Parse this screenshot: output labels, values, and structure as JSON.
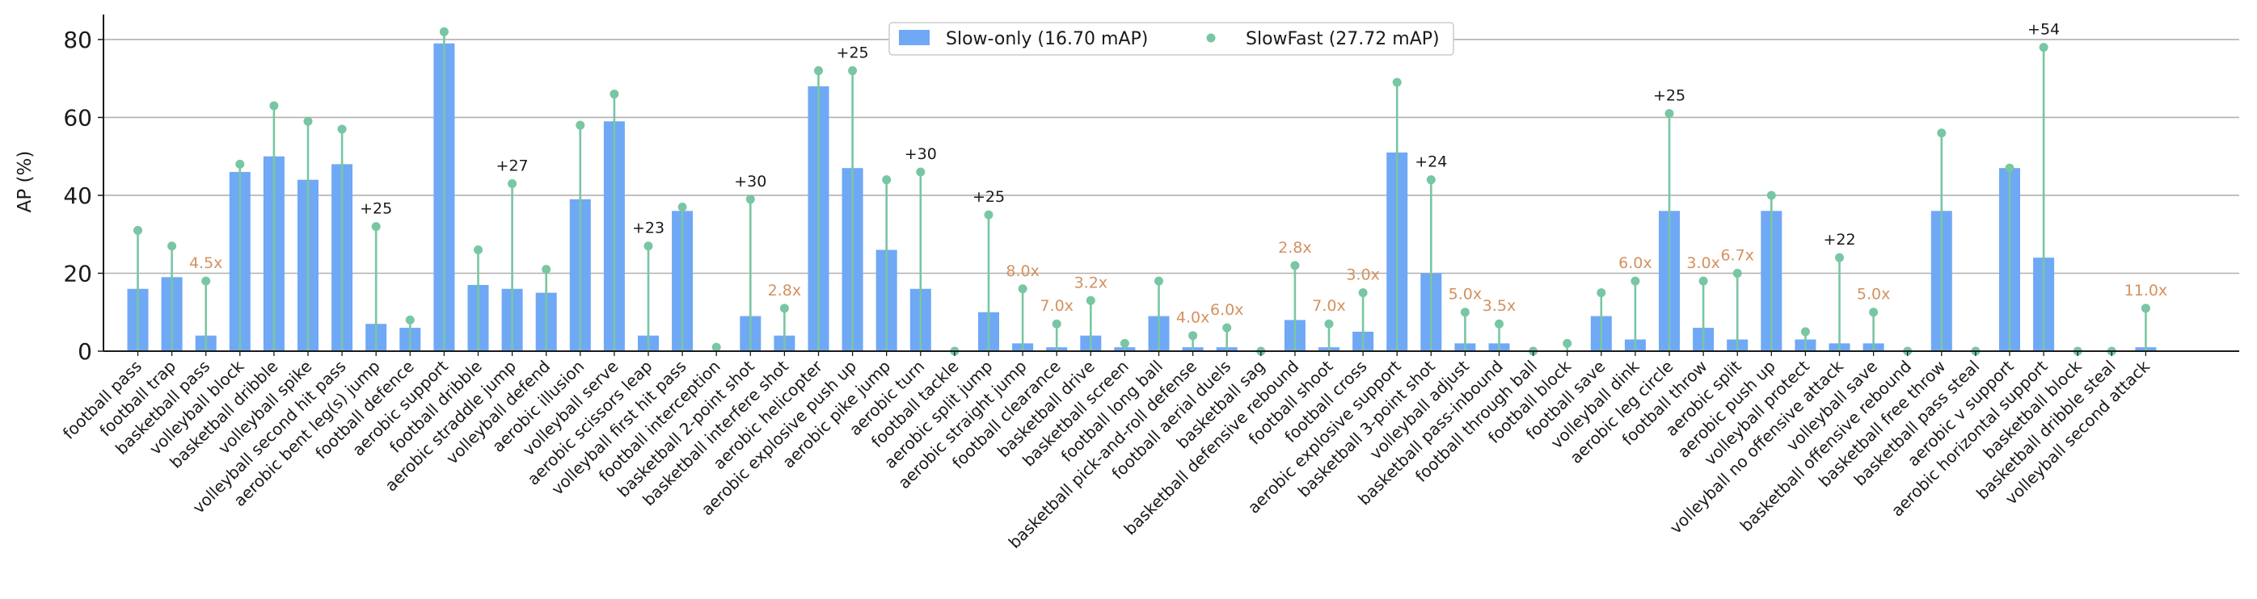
{
  "chart_data": {
    "type": "bar",
    "ylabel": "AP (%)",
    "ylim": [
      0,
      86
    ],
    "yticks": [
      "0",
      "20",
      "40",
      "60",
      "80"
    ],
    "grid": "horizontal",
    "legend_position": "top-center",
    "colors": {
      "bar": "#6fa8f5",
      "stem": "#78c6a3",
      "annotation_diff": "#1a1a1a",
      "annotation_ratio": "#d4915f"
    },
    "categories": [
      "football pass",
      "football trap",
      "basketball pass",
      "volleyball block",
      "basketball dribble",
      "volleyball spike",
      "volleyball second hit pass",
      "aerobic bent leg(s) jump",
      "football defence",
      "aerobic support",
      "football dribble",
      "aerobic straddle jump",
      "volleyball defend",
      "aerobic illusion",
      "volleyball serve",
      "aerobic scissors leap",
      "volleyball first hit pass",
      "football interception",
      "basketball 2-point shot",
      "basketball interfere shot",
      "aerobic helicopter",
      "aerobic explosive push up",
      "aerobic pike jump",
      "aerobic turn",
      "football tackle",
      "aerobic split jump",
      "aerobic straight jump",
      "football clearance",
      "basketball drive",
      "basketball screen",
      "football long ball",
      "basketball pick-and-roll defense",
      "football aerial duels",
      "basketball sag",
      "basketball defensive rebound",
      "football shoot",
      "football cross",
      "aerobic explosive support",
      "basketball 3-point shot",
      "volleyball adjust",
      "basketball pass-inbound",
      "football through ball",
      "football block",
      "football save",
      "volleyball dink",
      "aerobic leg circle",
      "football throw",
      "aerobic split",
      "aerobic push up",
      "volleyball protect",
      "volleyball no offensive attack",
      "volleyball save",
      "basketball offensive rebound",
      "basketball free throw",
      "basketball pass steal",
      "aerobic v support",
      "aerobic horizontal support",
      "basketball block",
      "basketball dribble steal",
      "volleyball second attack"
    ],
    "series": [
      {
        "name": "Slow-only (16.70 mAP)",
        "type": "bar",
        "values": [
          16,
          19,
          4,
          46,
          50,
          44,
          48,
          7,
          6,
          79,
          17,
          16,
          15,
          39,
          59,
          4,
          36,
          0,
          9,
          4,
          68,
          47,
          26,
          16,
          0,
          10,
          2,
          1,
          4,
          1,
          9,
          1,
          1,
          0,
          8,
          1,
          5,
          51,
          20,
          2,
          2,
          0,
          0,
          9,
          3,
          36,
          6,
          3,
          36,
          3,
          2,
          2,
          0,
          36,
          0,
          47,
          24,
          0,
          0,
          1
        ]
      },
      {
        "name": "SlowFast (27.72 mAP)",
        "type": "lollipop",
        "values": [
          31,
          27,
          18,
          48,
          63,
          59,
          57,
          32,
          8,
          82,
          26,
          43,
          21,
          58,
          66,
          27,
          37,
          1,
          39,
          11,
          72,
          72,
          44,
          46,
          0,
          35,
          16,
          7,
          13,
          2,
          18,
          4,
          6,
          0,
          22,
          7,
          15,
          69,
          44,
          10,
          7,
          0,
          2,
          15,
          18,
          61,
          18,
          20,
          40,
          5,
          24,
          10,
          0,
          56,
          0,
          47,
          78,
          0,
          0,
          11
        ]
      }
    ],
    "annotations": [
      {
        "category": "basketball pass",
        "text": "4.5x",
        "kind": "ratio"
      },
      {
        "category": "aerobic bent leg(s) jump",
        "text": "+25",
        "kind": "diff"
      },
      {
        "category": "aerobic straddle jump",
        "text": "+27",
        "kind": "diff"
      },
      {
        "category": "aerobic scissors leap",
        "text": "+23",
        "kind": "diff"
      },
      {
        "category": "basketball 2-point shot",
        "text": "+30",
        "kind": "diff"
      },
      {
        "category": "basketball interfere shot",
        "text": "2.8x",
        "kind": "ratio"
      },
      {
        "category": "aerobic explosive push up",
        "text": "+25",
        "kind": "diff"
      },
      {
        "category": "aerobic turn",
        "text": "+30",
        "kind": "diff"
      },
      {
        "category": "aerobic split jump",
        "text": "+25",
        "kind": "diff"
      },
      {
        "category": "aerobic straight jump",
        "text": "8.0x",
        "kind": "ratio"
      },
      {
        "category": "football clearance",
        "text": "7.0x",
        "kind": "ratio"
      },
      {
        "category": "basketball drive",
        "text": "3.2x",
        "kind": "ratio"
      },
      {
        "category": "basketball pick-and-roll defense",
        "text": "4.0x",
        "kind": "ratio"
      },
      {
        "category": "football aerial duels",
        "text": "6.0x",
        "kind": "ratio"
      },
      {
        "category": "basketball defensive rebound",
        "text": "2.8x",
        "kind": "ratio"
      },
      {
        "category": "football shoot",
        "text": "7.0x",
        "kind": "ratio"
      },
      {
        "category": "football cross",
        "text": "3.0x",
        "kind": "ratio"
      },
      {
        "category": "basketball 3-point shot",
        "text": "+24",
        "kind": "diff"
      },
      {
        "category": "volleyball adjust",
        "text": "5.0x",
        "kind": "ratio"
      },
      {
        "category": "basketball pass-inbound",
        "text": "3.5x",
        "kind": "ratio"
      },
      {
        "category": "volleyball dink",
        "text": "6.0x",
        "kind": "ratio"
      },
      {
        "category": "aerobic leg circle",
        "text": "+25",
        "kind": "diff"
      },
      {
        "category": "football throw",
        "text": "3.0x",
        "kind": "ratio"
      },
      {
        "category": "aerobic split",
        "text": "6.7x",
        "kind": "ratio"
      },
      {
        "category": "volleyball no offensive attack",
        "text": "+22",
        "kind": "diff"
      },
      {
        "category": "volleyball save",
        "text": "5.0x",
        "kind": "ratio"
      },
      {
        "category": "aerobic horizontal support",
        "text": "+54",
        "kind": "diff"
      },
      {
        "category": "volleyball second attack",
        "text": "11.0x",
        "kind": "ratio"
      }
    ]
  }
}
